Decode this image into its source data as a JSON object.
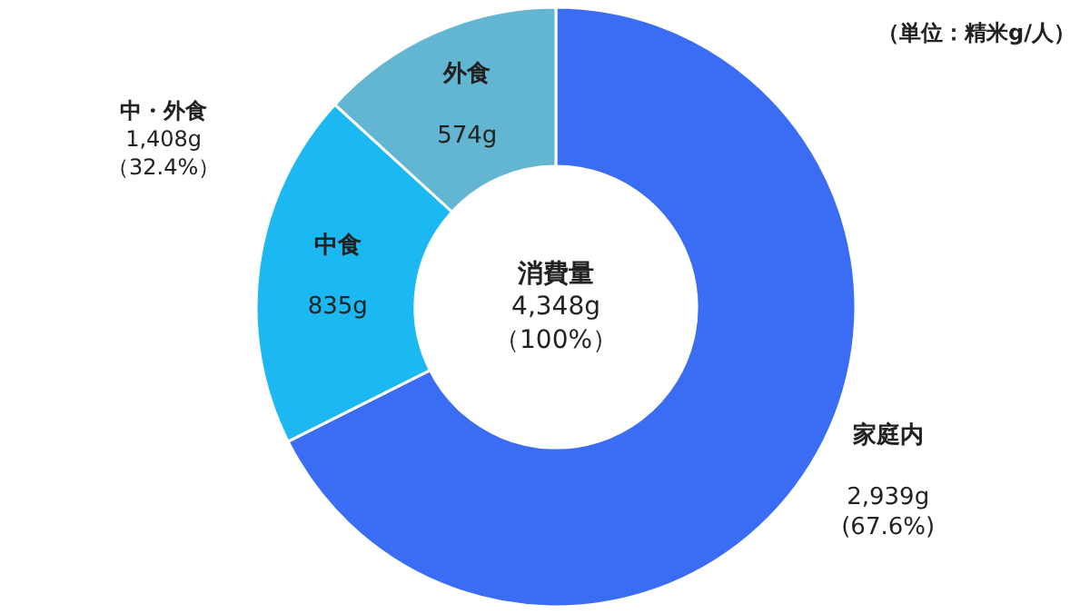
{
  "chart_data": {
    "type": "donut",
    "categories": [
      "家庭内",
      "中食",
      "外食"
    ],
    "values": [
      2939,
      835,
      574
    ],
    "colors": [
      "#3a6cf4",
      "#1cb8f2",
      "#62b6d2"
    ],
    "value_labels": [
      "2,939g\n(67.6%)",
      "835g",
      "574g"
    ],
    "annotations": [
      "消費量\n4,348g\n（100%）",
      "（単位：精米g/人）",
      "中・外食\n1,408g\n（32.4%）"
    ],
    "legend": false
  }
}
